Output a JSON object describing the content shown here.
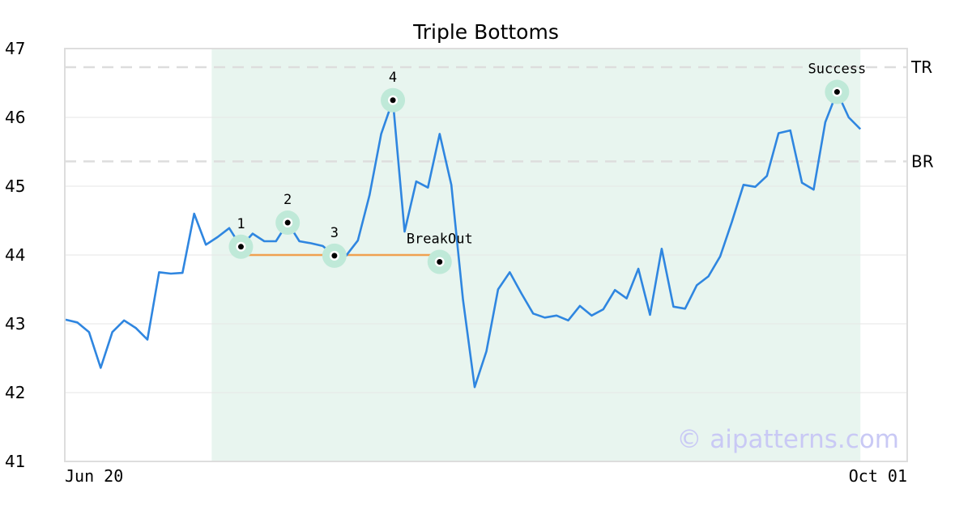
{
  "chart_data": {
    "type": "line",
    "title": "Triple Bottoms",
    "xlabel": "",
    "ylabel": "",
    "ylim": [
      41,
      47
    ],
    "yticks": [
      41,
      42,
      43,
      44,
      45,
      46,
      47
    ],
    "xtick_labels": [
      "Jun 20",
      "Oct 01"
    ],
    "grid": true,
    "series": [
      {
        "color": "#2f86e0",
        "values": [
          43.06,
          43.02,
          42.88,
          42.36,
          42.88,
          43.05,
          42.94,
          42.77,
          43.75,
          43.73,
          43.74,
          44.6,
          44.15,
          44.26,
          44.39,
          44.12,
          44.31,
          44.2,
          44.2,
          44.47,
          44.2,
          44.17,
          44.13,
          43.99,
          43.99,
          44.21,
          44.87,
          45.76,
          46.25,
          44.34,
          45.07,
          44.98,
          45.76,
          45.02,
          43.35,
          42.08,
          42.6,
          43.5,
          43.75,
          43.44,
          43.15,
          43.09,
          43.12,
          43.05,
          43.26,
          43.12,
          43.21,
          43.49,
          43.37,
          43.8,
          43.13,
          44.09,
          43.25,
          43.22,
          43.56,
          43.69,
          43.98,
          44.48,
          45.02,
          44.99,
          45.15,
          45.77,
          45.81,
          45.05,
          44.95,
          45.93,
          46.37,
          46.0,
          45.83
        ]
      }
    ],
    "shaded_region": {
      "from_index": 13,
      "to_index": 68,
      "color": "#e8f5ef"
    },
    "reference_lines": [
      {
        "label": "TR",
        "y": 46.73,
        "style": "dashed",
        "color": "#dddddd"
      },
      {
        "label": "BR",
        "y": 45.36,
        "style": "dashed",
        "color": "#dddddd"
      }
    ],
    "neckline": {
      "from_index": 15,
      "to_index": 32,
      "y": 44.0,
      "color": "#f0a050"
    },
    "annotations": [
      {
        "label": "1",
        "index": 15,
        "y": 44.12
      },
      {
        "label": "2",
        "index": 19,
        "y": 44.47
      },
      {
        "label": "3",
        "index": 23,
        "y": 43.99
      },
      {
        "label": "4",
        "index": 28,
        "y": 46.25
      },
      {
        "label": "BreakOut",
        "index": 32,
        "y": 43.9
      },
      {
        "label": "Success",
        "index": 66,
        "y": 46.37
      }
    ],
    "marker_color": "#bfe9d8",
    "watermark": "© aipatterns.com"
  }
}
